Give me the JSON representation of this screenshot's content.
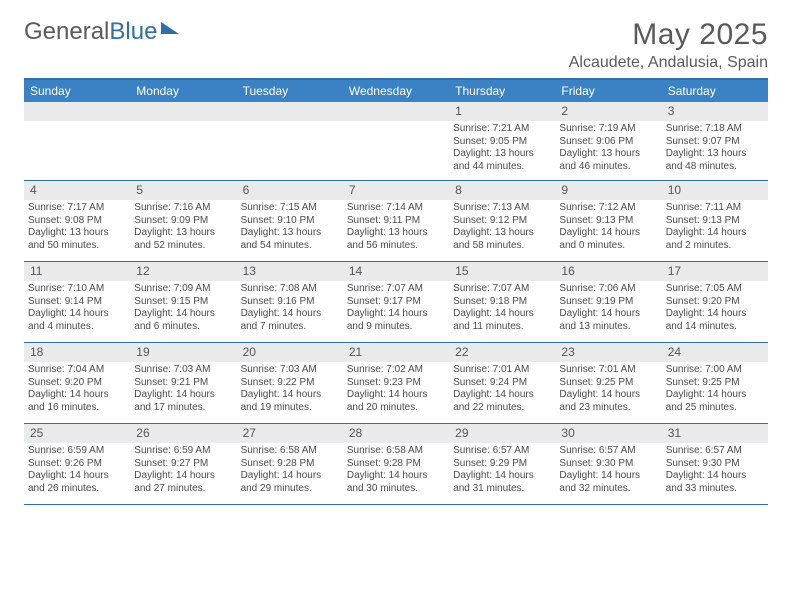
{
  "logo": {
    "word1": "General",
    "word2": "Blue"
  },
  "title": "May 2025",
  "location": "Alcaudete, Andalusia, Spain",
  "colors": {
    "accent": "#2f6fa8",
    "header_bg": "#3b82c4",
    "num_bg": "#e9eaeb",
    "text": "#4a4a4a",
    "title_text": "#5a5a5a"
  },
  "day_labels": [
    "Sunday",
    "Monday",
    "Tuesday",
    "Wednesday",
    "Thursday",
    "Friday",
    "Saturday"
  ],
  "weeks": [
    [
      {
        "n": "",
        "sr": "",
        "ss": "",
        "dl": ""
      },
      {
        "n": "",
        "sr": "",
        "ss": "",
        "dl": ""
      },
      {
        "n": "",
        "sr": "",
        "ss": "",
        "dl": ""
      },
      {
        "n": "",
        "sr": "",
        "ss": "",
        "dl": ""
      },
      {
        "n": "1",
        "sr": "Sunrise: 7:21 AM",
        "ss": "Sunset: 9:05 PM",
        "dl": "Daylight: 13 hours and 44 minutes."
      },
      {
        "n": "2",
        "sr": "Sunrise: 7:19 AM",
        "ss": "Sunset: 9:06 PM",
        "dl": "Daylight: 13 hours and 46 minutes."
      },
      {
        "n": "3",
        "sr": "Sunrise: 7:18 AM",
        "ss": "Sunset: 9:07 PM",
        "dl": "Daylight: 13 hours and 48 minutes."
      }
    ],
    [
      {
        "n": "4",
        "sr": "Sunrise: 7:17 AM",
        "ss": "Sunset: 9:08 PM",
        "dl": "Daylight: 13 hours and 50 minutes."
      },
      {
        "n": "5",
        "sr": "Sunrise: 7:16 AM",
        "ss": "Sunset: 9:09 PM",
        "dl": "Daylight: 13 hours and 52 minutes."
      },
      {
        "n": "6",
        "sr": "Sunrise: 7:15 AM",
        "ss": "Sunset: 9:10 PM",
        "dl": "Daylight: 13 hours and 54 minutes."
      },
      {
        "n": "7",
        "sr": "Sunrise: 7:14 AM",
        "ss": "Sunset: 9:11 PM",
        "dl": "Daylight: 13 hours and 56 minutes."
      },
      {
        "n": "8",
        "sr": "Sunrise: 7:13 AM",
        "ss": "Sunset: 9:12 PM",
        "dl": "Daylight: 13 hours and 58 minutes."
      },
      {
        "n": "9",
        "sr": "Sunrise: 7:12 AM",
        "ss": "Sunset: 9:13 PM",
        "dl": "Daylight: 14 hours and 0 minutes."
      },
      {
        "n": "10",
        "sr": "Sunrise: 7:11 AM",
        "ss": "Sunset: 9:13 PM",
        "dl": "Daylight: 14 hours and 2 minutes."
      }
    ],
    [
      {
        "n": "11",
        "sr": "Sunrise: 7:10 AM",
        "ss": "Sunset: 9:14 PM",
        "dl": "Daylight: 14 hours and 4 minutes."
      },
      {
        "n": "12",
        "sr": "Sunrise: 7:09 AM",
        "ss": "Sunset: 9:15 PM",
        "dl": "Daylight: 14 hours and 6 minutes."
      },
      {
        "n": "13",
        "sr": "Sunrise: 7:08 AM",
        "ss": "Sunset: 9:16 PM",
        "dl": "Daylight: 14 hours and 7 minutes."
      },
      {
        "n": "14",
        "sr": "Sunrise: 7:07 AM",
        "ss": "Sunset: 9:17 PM",
        "dl": "Daylight: 14 hours and 9 minutes."
      },
      {
        "n": "15",
        "sr": "Sunrise: 7:07 AM",
        "ss": "Sunset: 9:18 PM",
        "dl": "Daylight: 14 hours and 11 minutes."
      },
      {
        "n": "16",
        "sr": "Sunrise: 7:06 AM",
        "ss": "Sunset: 9:19 PM",
        "dl": "Daylight: 14 hours and 13 minutes."
      },
      {
        "n": "17",
        "sr": "Sunrise: 7:05 AM",
        "ss": "Sunset: 9:20 PM",
        "dl": "Daylight: 14 hours and 14 minutes."
      }
    ],
    [
      {
        "n": "18",
        "sr": "Sunrise: 7:04 AM",
        "ss": "Sunset: 9:20 PM",
        "dl": "Daylight: 14 hours and 16 minutes."
      },
      {
        "n": "19",
        "sr": "Sunrise: 7:03 AM",
        "ss": "Sunset: 9:21 PM",
        "dl": "Daylight: 14 hours and 17 minutes."
      },
      {
        "n": "20",
        "sr": "Sunrise: 7:03 AM",
        "ss": "Sunset: 9:22 PM",
        "dl": "Daylight: 14 hours and 19 minutes."
      },
      {
        "n": "21",
        "sr": "Sunrise: 7:02 AM",
        "ss": "Sunset: 9:23 PM",
        "dl": "Daylight: 14 hours and 20 minutes."
      },
      {
        "n": "22",
        "sr": "Sunrise: 7:01 AM",
        "ss": "Sunset: 9:24 PM",
        "dl": "Daylight: 14 hours and 22 minutes."
      },
      {
        "n": "23",
        "sr": "Sunrise: 7:01 AM",
        "ss": "Sunset: 9:25 PM",
        "dl": "Daylight: 14 hours and 23 minutes."
      },
      {
        "n": "24",
        "sr": "Sunrise: 7:00 AM",
        "ss": "Sunset: 9:25 PM",
        "dl": "Daylight: 14 hours and 25 minutes."
      }
    ],
    [
      {
        "n": "25",
        "sr": "Sunrise: 6:59 AM",
        "ss": "Sunset: 9:26 PM",
        "dl": "Daylight: 14 hours and 26 minutes."
      },
      {
        "n": "26",
        "sr": "Sunrise: 6:59 AM",
        "ss": "Sunset: 9:27 PM",
        "dl": "Daylight: 14 hours and 27 minutes."
      },
      {
        "n": "27",
        "sr": "Sunrise: 6:58 AM",
        "ss": "Sunset: 9:28 PM",
        "dl": "Daylight: 14 hours and 29 minutes."
      },
      {
        "n": "28",
        "sr": "Sunrise: 6:58 AM",
        "ss": "Sunset: 9:28 PM",
        "dl": "Daylight: 14 hours and 30 minutes."
      },
      {
        "n": "29",
        "sr": "Sunrise: 6:57 AM",
        "ss": "Sunset: 9:29 PM",
        "dl": "Daylight: 14 hours and 31 minutes."
      },
      {
        "n": "30",
        "sr": "Sunrise: 6:57 AM",
        "ss": "Sunset: 9:30 PM",
        "dl": "Daylight: 14 hours and 32 minutes."
      },
      {
        "n": "31",
        "sr": "Sunrise: 6:57 AM",
        "ss": "Sunset: 9:30 PM",
        "dl": "Daylight: 14 hours and 33 minutes."
      }
    ]
  ]
}
